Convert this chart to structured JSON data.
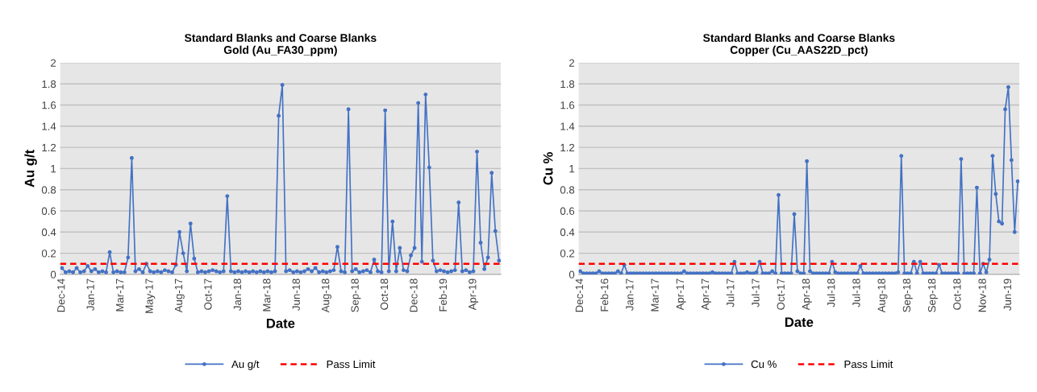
{
  "chart_data": [
    {
      "type": "line",
      "title": "Standard Blanks and Coarse Blanks",
      "subtitle": "Gold (Au_FA30_ppm)",
      "xlabel": "Date",
      "ylabel": "Au g/t",
      "categories": [
        "Dec-14",
        null,
        null,
        null,
        null,
        null,
        null,
        null,
        "Jan-17",
        null,
        null,
        null,
        null,
        null,
        null,
        null,
        "Mar-17",
        null,
        null,
        null,
        null,
        null,
        null,
        null,
        "May-17",
        null,
        null,
        null,
        null,
        null,
        null,
        null,
        "Aug-17",
        null,
        null,
        null,
        null,
        null,
        null,
        null,
        "Oct-17",
        null,
        null,
        null,
        null,
        null,
        null,
        null,
        "Jan-18",
        null,
        null,
        null,
        null,
        null,
        null,
        null,
        "Mar-18",
        null,
        null,
        null,
        null,
        null,
        null,
        null,
        "Jun-18",
        null,
        null,
        null,
        null,
        null,
        null,
        null,
        "Aug-18",
        null,
        null,
        null,
        null,
        null,
        null,
        null,
        "Sep-18",
        null,
        null,
        null,
        null,
        null,
        null,
        null,
        "Oct-18",
        null,
        null,
        null,
        null,
        null,
        null,
        null,
        "Dec-18",
        null,
        null,
        null,
        null,
        null,
        null,
        null,
        "Feb-19",
        null,
        null,
        null,
        null,
        null,
        null,
        null,
        "Apr-19",
        null,
        null,
        null,
        null,
        null,
        null,
        null
      ],
      "series": [
        {
          "name": "Au g/t",
          "color": "#4472c4",
          "values": [
            0.06,
            0.02,
            0.03,
            0.02,
            0.06,
            0.02,
            0.03,
            0.08,
            0.03,
            0.05,
            0.02,
            0.03,
            0.02,
            0.21,
            0.02,
            0.03,
            0.02,
            0.02,
            0.16,
            1.1,
            0.03,
            0.05,
            0.02,
            0.1,
            0.03,
            0.02,
            0.03,
            0.02,
            0.04,
            0.03,
            0.02,
            0.09,
            0.4,
            0.2,
            0.03,
            0.48,
            0.15,
            0.02,
            0.03,
            0.02,
            0.03,
            0.04,
            0.03,
            0.02,
            0.03,
            0.74,
            0.03,
            0.02,
            0.03,
            0.02,
            0.03,
            0.02,
            0.03,
            0.02,
            0.03,
            0.02,
            0.03,
            0.02,
            0.03,
            1.5,
            1.79,
            0.03,
            0.04,
            0.02,
            0.03,
            0.02,
            0.03,
            0.05,
            0.03,
            0.06,
            0.02,
            0.03,
            0.02,
            0.03,
            0.04,
            0.26,
            0.03,
            0.02,
            1.56,
            0.03,
            0.05,
            0.02,
            0.03,
            0.04,
            0.02,
            0.14,
            0.03,
            0.02,
            1.55,
            0.03,
            0.5,
            0.03,
            0.25,
            0.04,
            0.03,
            0.18,
            0.25,
            1.62,
            0.12,
            1.7,
            1.01,
            0.13,
            0.03,
            0.04,
            0.03,
            0.02,
            0.03,
            0.04,
            0.68,
            0.03,
            0.04,
            0.02,
            0.03,
            1.16,
            0.3,
            0.05,
            0.16,
            0.96,
            0.41,
            0.13
          ]
        }
      ],
      "ylim": [
        0,
        2
      ],
      "yticks": [
        0,
        0.2,
        0.4,
        0.6,
        0.8,
        1,
        1.2,
        1.4,
        1.6,
        1.8,
        2
      ],
      "ref_lines": [
        {
          "axis": "y",
          "value": 0.1,
          "label": "Pass Limit",
          "color": "#ff0000",
          "line_style": "dashed"
        }
      ],
      "grid": "y",
      "legend": "bottom",
      "marker": "circle",
      "line_style": "solid"
    },
    {
      "type": "line",
      "title": "Standard Blanks and Coarse Blanks",
      "subtitle": "Copper (Cu_AAS22D_pct)",
      "xlabel": "Date",
      "ylabel": "Cu %",
      "categories": [
        "Dec-14",
        null,
        null,
        null,
        null,
        null,
        null,
        null,
        "Feb-16",
        null,
        null,
        null,
        null,
        null,
        null,
        null,
        "Jan-17",
        null,
        null,
        null,
        null,
        null,
        null,
        null,
        "Mar-17",
        null,
        null,
        null,
        null,
        null,
        null,
        null,
        "Apr-17",
        null,
        null,
        null,
        null,
        null,
        null,
        null,
        "Apr-17",
        null,
        null,
        null,
        null,
        null,
        null,
        null,
        "Jul-17",
        null,
        null,
        null,
        null,
        null,
        null,
        null,
        "Jul-17",
        null,
        null,
        null,
        null,
        null,
        null,
        null,
        "Oct-17",
        null,
        null,
        null,
        null,
        null,
        null,
        null,
        "Apr-18",
        null,
        null,
        null,
        null,
        null,
        null,
        null,
        "Jul-18",
        null,
        null,
        null,
        null,
        null,
        null,
        null,
        "Jul-18",
        null,
        null,
        null,
        null,
        null,
        null,
        null,
        "Aug-18",
        null,
        null,
        null,
        null,
        null,
        null,
        null,
        "Sep-18",
        null,
        null,
        null,
        null,
        null,
        null,
        null,
        "Sep-18",
        null,
        null,
        null,
        null,
        null,
        null,
        null,
        "Oct-18",
        null,
        null,
        null,
        null,
        null,
        null,
        null,
        "Nov-18",
        null,
        null,
        null,
        null,
        null,
        null,
        null,
        "Jun-19",
        null,
        null,
        null
      ],
      "series": [
        {
          "name": "Cu %",
          "color": "#4472c4",
          "values": [
            0.03,
            0.01,
            0.01,
            0.01,
            0.01,
            0.01,
            0.03,
            0.01,
            0.01,
            0.01,
            0.01,
            0.01,
            0.03,
            0.01,
            0.09,
            0.01,
            0.01,
            0.01,
            0.01,
            0.01,
            0.01,
            0.01,
            0.01,
            0.01,
            0.01,
            0.01,
            0.01,
            0.01,
            0.01,
            0.01,
            0.01,
            0.01,
            0.01,
            0.03,
            0.01,
            0.01,
            0.01,
            0.01,
            0.01,
            0.01,
            0.01,
            0.01,
            0.02,
            0.01,
            0.01,
            0.01,
            0.01,
            0.01,
            0.01,
            0.12,
            0.01,
            0.01,
            0.01,
            0.02,
            0.01,
            0.01,
            0.02,
            0.12,
            0.01,
            0.01,
            0.01,
            0.03,
            0.01,
            0.75,
            0.01,
            0.01,
            0.01,
            0.01,
            0.57,
            0.03,
            0.01,
            0.01,
            1.07,
            0.03,
            0.01,
            0.01,
            0.01,
            0.01,
            0.01,
            0.01,
            0.12,
            0.02,
            0.01,
            0.01,
            0.01,
            0.01,
            0.01,
            0.01,
            0.01,
            0.08,
            0.01,
            0.01,
            0.01,
            0.01,
            0.01,
            0.01,
            0.01,
            0.01,
            0.01,
            0.01,
            0.01,
            0.02,
            1.12,
            0.01,
            0.01,
            0.01,
            0.12,
            0.01,
            0.12,
            0.01,
            0.01,
            0.01,
            0.01,
            0.01,
            0.09,
            0.01,
            0.01,
            0.01,
            0.01,
            0.01,
            0.01,
            1.09,
            0.01,
            0.01,
            0.01,
            0.01,
            0.82,
            0.01,
            0.1,
            0.02,
            0.14,
            1.12,
            0.76,
            0.5,
            0.48,
            1.56,
            1.77,
            1.08,
            0.4,
            0.88
          ]
        }
      ],
      "ylim": [
        0,
        2
      ],
      "yticks": [
        0,
        0.2,
        0.4,
        0.6,
        0.8,
        1,
        1.2,
        1.4,
        1.6,
        1.8,
        2
      ],
      "ref_lines": [
        {
          "axis": "y",
          "value": 0.1,
          "label": "Pass Limit",
          "color": "#ff0000",
          "line_style": "dashed"
        }
      ],
      "grid": "y",
      "legend": "bottom",
      "marker": "circle",
      "line_style": "solid"
    }
  ]
}
